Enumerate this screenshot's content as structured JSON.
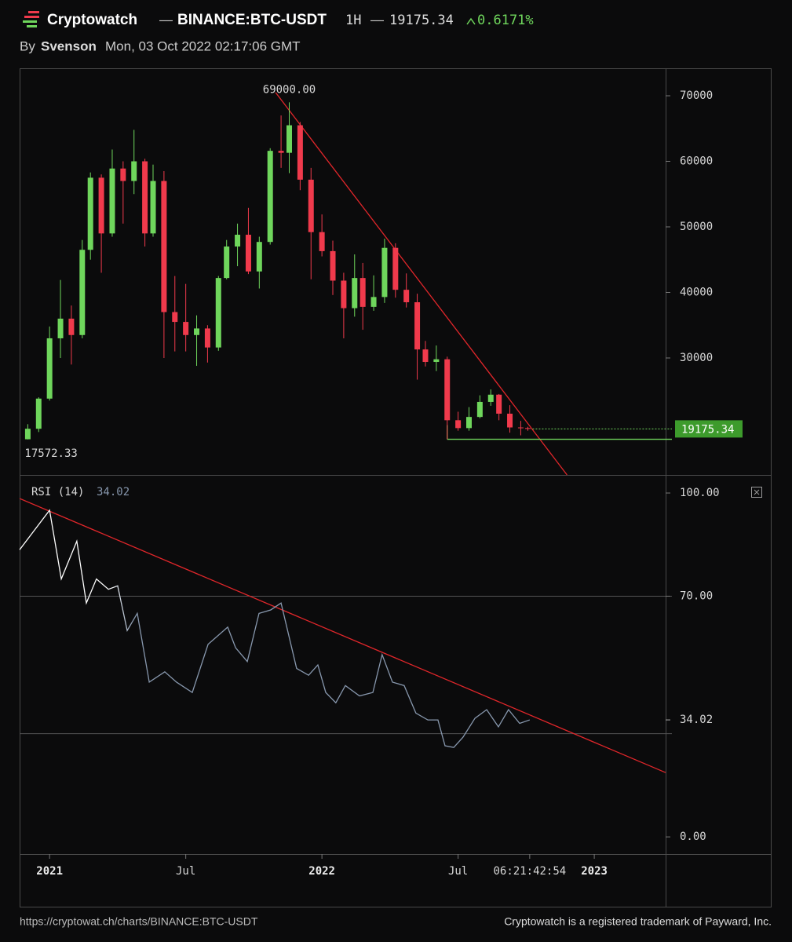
{
  "header": {
    "brand": "Cryptowatch",
    "dash": "—",
    "market": "BINANCE:BTC-USDT",
    "interval": "1H",
    "change": "0.6171%",
    "by": "By",
    "author": "Svenson",
    "date": "Mon, 03 Oct 2022 02:17:06 GMT"
  },
  "footer": {
    "url": "https://cryptowat.ch/charts/BINANCE:BTC-USDT",
    "trademark": "Cryptowatch is a registered trademark of Payward, Inc."
  },
  "chart_data": [
    {
      "type": "candlestick",
      "x": [
        2020.92,
        2020.96,
        2021.0,
        2021.04,
        2021.08,
        2021.12,
        2021.15,
        2021.19,
        2021.23,
        2021.27,
        2021.31,
        2021.35,
        2021.38,
        2021.42,
        2021.46,
        2021.5,
        2021.54,
        2021.58,
        2021.62,
        2021.65,
        2021.69,
        2021.73,
        2021.77,
        2021.81,
        2021.85,
        2021.88,
        2021.92,
        2021.96,
        2022.0,
        2022.04,
        2022.08,
        2022.12,
        2022.15,
        2022.19,
        2022.23,
        2022.27,
        2022.31,
        2022.35,
        2022.38,
        2022.42,
        2022.46,
        2022.5,
        2022.54,
        2022.58,
        2022.62,
        2022.65,
        2022.69,
        2022.73,
        2022.756
      ],
      "open": [
        17600,
        19200,
        23800,
        33000,
        36000,
        33500,
        46500,
        57500,
        49000,
        58900,
        57000,
        60000,
        49000,
        57000,
        37000,
        35500,
        33500,
        34500,
        31600,
        42200,
        47000,
        48800,
        43200,
        47700,
        61600,
        61300,
        65500,
        57200,
        49200,
        46300,
        41800,
        37600,
        42200,
        37800,
        39300,
        46800,
        40400,
        38500,
        31300,
        29400,
        29800,
        20500,
        19300,
        21000,
        23300,
        24400,
        21500,
        19400,
        19300
      ],
      "high": [
        19900,
        24000,
        34800,
        41900,
        38000,
        48000,
        58300,
        58000,
        61800,
        60000,
        64800,
        60400,
        59500,
        58500,
        42500,
        41300,
        36500,
        35000,
        42500,
        48000,
        50500,
        52900,
        48500,
        62000,
        67000,
        69000,
        66000,
        59000,
        51900,
        47900,
        43000,
        45800,
        44500,
        42600,
        48200,
        47500,
        42900,
        39800,
        32600,
        31900,
        30200,
        21800,
        22500,
        24300,
        25200,
        24500,
        22800,
        20400,
        19500
      ],
      "low": [
        17572.33,
        18700,
        23500,
        30000,
        29000,
        33000,
        45000,
        43000,
        48500,
        50500,
        55000,
        47000,
        48500,
        30000,
        31000,
        31000,
        28800,
        29300,
        31100,
        42000,
        44000,
        42800,
        40600,
        47300,
        59000,
        58200,
        55600,
        42000,
        45500,
        39600,
        33000,
        36300,
        34300,
        37200,
        38400,
        39200,
        37700,
        26700,
        28700,
        28000,
        17600,
        18900,
        18900,
        20800,
        22700,
        20500,
        18600,
        18200,
        18900
      ],
      "close": [
        19200,
        23800,
        33000,
        36000,
        33500,
        46500,
        57500,
        49000,
        58900,
        57000,
        60000,
        49000,
        57000,
        37000,
        35500,
        33500,
        34500,
        31600,
        42200,
        47000,
        48800,
        43200,
        47700,
        61600,
        61300,
        65500,
        57200,
        49200,
        46300,
        41800,
        37600,
        42200,
        37800,
        39300,
        46800,
        40400,
        38500,
        31300,
        29400,
        29800,
        20500,
        19300,
        21000,
        23300,
        24400,
        21500,
        19400,
        19300,
        19175.34
      ],
      "up_color": "#6fd65c",
      "down_color": "#f03a4c",
      "xlim": [
        2020.89,
        2023.262
      ],
      "ylim": [
        12156,
        74192
      ],
      "yticks": [
        30000,
        40000,
        50000,
        60000,
        70000
      ],
      "high_label": {
        "value": 69000,
        "label": "69000.00"
      },
      "low_label": {
        "value": 17572.33,
        "label": "17572.33"
      },
      "trendline": {
        "color": "#e0262a",
        "x": [
          2021.83,
          2022.9
        ],
        "y": [
          70500,
          12156
        ]
      },
      "support_line": {
        "color": "#6fd65c",
        "x": 2022.46,
        "y": 17600
      },
      "last_price_color": "#3d9b2c"
    },
    {
      "type": "line",
      "title": "RSI (14)",
      "x": [
        2020.89,
        2020.933,
        2021.0,
        2021.043,
        2021.1,
        2021.135,
        2021.172,
        2021.216,
        2021.25,
        2021.285,
        2021.322,
        2021.366,
        2021.423,
        2021.466,
        2021.524,
        2021.582,
        2021.654,
        2021.683,
        2021.726,
        2021.769,
        2021.812,
        2021.85,
        2021.907,
        2021.951,
        2021.985,
        2022.014,
        2022.051,
        2022.086,
        2022.138,
        2022.187,
        2022.221,
        2022.259,
        2022.302,
        2022.345,
        2022.389,
        2022.426,
        2022.452,
        2022.484,
        2022.518,
        2022.562,
        2022.605,
        2022.648,
        2022.685,
        2022.726,
        2022.763
      ],
      "values": [
        83.5,
        88,
        95,
        75,
        86,
        68,
        75,
        72,
        73,
        60,
        65,
        45,
        48,
        45,
        42,
        56,
        61,
        55,
        51,
        65,
        66,
        68,
        49,
        47,
        50,
        42,
        39,
        44,
        41,
        42,
        53,
        45,
        44,
        36,
        34,
        34,
        26.5,
        26,
        29,
        34.5,
        37,
        32,
        37,
        33,
        34.02
      ],
      "color": "#8797ad",
      "xlim": [
        2020.89,
        2023.262
      ],
      "ylim": [
        -5,
        104.8
      ],
      "yticks": [
        {
          "value": 0,
          "label": "0.00"
        },
        {
          "value": 70,
          "label": "70.00"
        },
        {
          "value": 100,
          "label": "100.00"
        }
      ],
      "levels": [
        70,
        30
      ],
      "trendline": {
        "color": "#e0262a",
        "x": [
          2020.89,
          2023.262
        ],
        "y": [
          98.4,
          18.7
        ]
      },
      "xticks": [
        {
          "value": 2021.0,
          "label": "2021"
        },
        {
          "value": 2021.5,
          "label": "Jul"
        },
        {
          "value": 2022.0,
          "label": "2022"
        },
        {
          "value": 2022.5,
          "label": "Jul"
        },
        {
          "value": 2023.0,
          "label": "2023"
        }
      ],
      "countdown": {
        "value": 2022.763,
        "label": "06:21:42:54"
      }
    }
  ]
}
